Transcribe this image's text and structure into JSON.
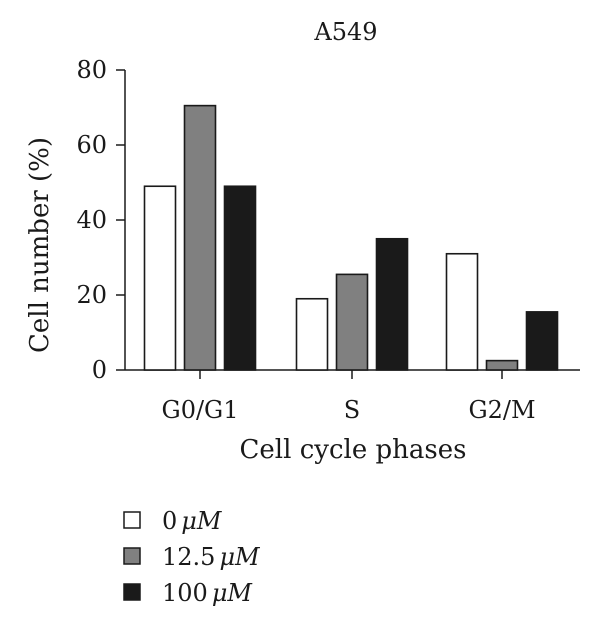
{
  "chart_data": {
    "type": "bar",
    "title": "A549",
    "xlabel": "Cell cycle phases",
    "ylabel": "Cell number (%)",
    "ylim": [
      0,
      80
    ],
    "yticks": [
      0,
      20,
      40,
      60,
      80
    ],
    "categories": [
      "G0/G1",
      "S",
      "G2/M"
    ],
    "series": [
      {
        "name": "0 μM",
        "prefix": "0",
        "unit": "μM",
        "color": "#ffffff",
        "values": [
          49,
          19,
          31
        ]
      },
      {
        "name": "12.5 μM",
        "prefix": "12.5",
        "unit": "μM",
        "color": "#808080",
        "values": [
          70.5,
          25.5,
          2.5
        ]
      },
      {
        "name": "100 μM",
        "prefix": "100",
        "unit": "μM",
        "color": "#1a1a1a",
        "values": [
          49,
          35,
          15.5
        ]
      }
    ],
    "legend_position": "bottom-left",
    "grid": false
  }
}
